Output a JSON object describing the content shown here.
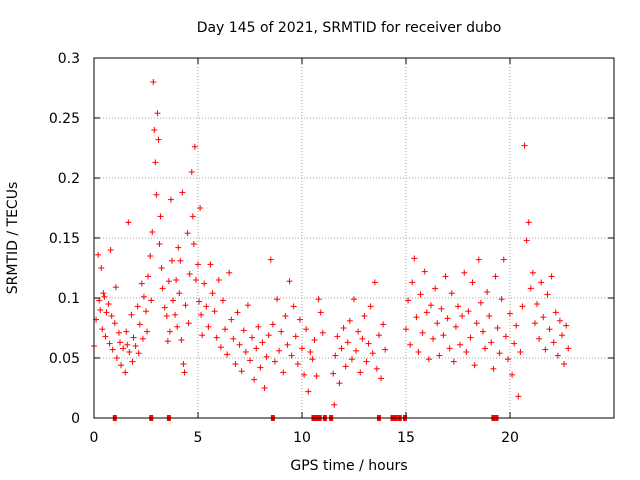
{
  "chart_data": {
    "type": "scatter",
    "title": "Day 145 of 2021, SRMTID for receiver dubo",
    "xlabel": "GPS time / hours",
    "ylabel": "SRMTID / TECUs",
    "xlim": [
      0,
      25
    ],
    "ylim": [
      0,
      0.3
    ],
    "xticks": [
      0,
      5,
      10,
      15,
      20
    ],
    "xtick_labels": [
      "0",
      "5",
      "10",
      "15",
      "20"
    ],
    "yticks": [
      0,
      0.05,
      0.1,
      0.15,
      0.2,
      0.25,
      0.3
    ],
    "ytick_labels": [
      "0",
      "0.05",
      "0.1",
      "0.15",
      "0.2",
      "0.25",
      "0.3"
    ],
    "grid": true,
    "marker": "+",
    "series_color": "#ff0000",
    "series": [
      {
        "name": "SRMTID",
        "points": [
          [
            0.0,
            0.06
          ],
          [
            0.1,
            0.082
          ],
          [
            0.2,
            0.136
          ],
          [
            0.25,
            0.098
          ],
          [
            0.3,
            0.09
          ],
          [
            0.35,
            0.125
          ],
          [
            0.4,
            0.074
          ],
          [
            0.45,
            0.104
          ],
          [
            0.5,
            0.101
          ],
          [
            0.55,
            0.068
          ],
          [
            0.6,
            0.088
          ],
          [
            0.7,
            0.095
          ],
          [
            0.75,
            0.062
          ],
          [
            0.8,
            0.14
          ],
          [
            0.85,
            0.085
          ],
          [
            0.9,
            0.057
          ],
          [
            1.0,
            0.079
          ],
          [
            1.05,
            0.109
          ],
          [
            1.1,
            0.05
          ],
          [
            1.2,
            0.071
          ],
          [
            1.25,
            0.063
          ],
          [
            1.3,
            0.044
          ],
          [
            1.4,
            0.058
          ],
          [
            1.5,
            0.038
          ],
          [
            1.55,
            0.072
          ],
          [
            1.6,
            0.061
          ],
          [
            1.65,
            0.163
          ],
          [
            1.7,
            0.055
          ],
          [
            1.8,
            0.086
          ],
          [
            1.85,
            0.047
          ],
          [
            1.9,
            0.067
          ],
          [
            2.0,
            0.06
          ],
          [
            2.1,
            0.093
          ],
          [
            2.15,
            0.054
          ],
          [
            2.2,
            0.078
          ],
          [
            2.3,
            0.112
          ],
          [
            2.35,
            0.066
          ],
          [
            2.4,
            0.101
          ],
          [
            2.5,
            0.089
          ],
          [
            2.55,
            0.072
          ],
          [
            2.6,
            0.118
          ],
          [
            2.7,
            0.135
          ],
          [
            2.75,
            0.098
          ],
          [
            2.8,
            0.155
          ],
          [
            2.85,
            0.28
          ],
          [
            2.9,
            0.24
          ],
          [
            2.95,
            0.213
          ],
          [
            3.0,
            0.186
          ],
          [
            3.05,
            0.254
          ],
          [
            3.1,
            0.232
          ],
          [
            3.15,
            0.145
          ],
          [
            3.2,
            0.168
          ],
          [
            3.25,
            0.125
          ],
          [
            3.3,
            0.108
          ],
          [
            3.4,
            0.092
          ],
          [
            3.5,
            0.085
          ],
          [
            3.55,
            0.064
          ],
          [
            3.6,
            0.114
          ],
          [
            3.65,
            0.072
          ],
          [
            3.7,
            0.182
          ],
          [
            3.75,
            0.131
          ],
          [
            3.8,
            0.098
          ],
          [
            3.9,
            0.086
          ],
          [
            3.95,
            0.115
          ],
          [
            4.0,
            0.076
          ],
          [
            4.05,
            0.142
          ],
          [
            4.1,
            0.104
          ],
          [
            4.15,
            0.131
          ],
          [
            4.2,
            0.065
          ],
          [
            4.25,
            0.188
          ],
          [
            4.3,
            0.045
          ],
          [
            4.35,
            0.038
          ],
          [
            4.4,
            0.094
          ],
          [
            4.5,
            0.154
          ],
          [
            4.55,
            0.079
          ],
          [
            4.6,
            0.12
          ],
          [
            4.7,
            0.205
          ],
          [
            4.75,
            0.168
          ],
          [
            4.8,
            0.145
          ],
          [
            4.85,
            0.226
          ],
          [
            4.9,
            0.115
          ],
          [
            5.0,
            0.128
          ],
          [
            5.05,
            0.097
          ],
          [
            5.1,
            0.175
          ],
          [
            5.15,
            0.086
          ],
          [
            5.2,
            0.069
          ],
          [
            5.3,
            0.112
          ],
          [
            5.4,
            0.093
          ],
          [
            5.5,
            0.076
          ],
          [
            5.6,
            0.128
          ],
          [
            5.7,
            0.104
          ],
          [
            5.8,
            0.089
          ],
          [
            5.9,
            0.067
          ],
          [
            6.0,
            0.115
          ],
          [
            6.1,
            0.059
          ],
          [
            6.2,
            0.098
          ],
          [
            6.3,
            0.074
          ],
          [
            6.4,
            0.053
          ],
          [
            6.5,
            0.121
          ],
          [
            6.6,
            0.082
          ],
          [
            6.7,
            0.066
          ],
          [
            6.8,
            0.045
          ],
          [
            6.9,
            0.088
          ],
          [
            7.0,
            0.061
          ],
          [
            7.1,
            0.039
          ],
          [
            7.2,
            0.073
          ],
          [
            7.3,
            0.055
          ],
          [
            7.4,
            0.094
          ],
          [
            7.5,
            0.048
          ],
          [
            7.6,
            0.067
          ],
          [
            7.7,
            0.032
          ],
          [
            7.8,
            0.058
          ],
          [
            7.9,
            0.076
          ],
          [
            8.0,
            0.042
          ],
          [
            8.1,
            0.063
          ],
          [
            8.2,
            0.025
          ],
          [
            8.3,
            0.051
          ],
          [
            8.4,
            0.069
          ],
          [
            8.5,
            0.132
          ],
          [
            8.6,
            0.078
          ],
          [
            8.7,
            0.047
          ],
          [
            8.8,
            0.099
          ],
          [
            8.9,
            0.056
          ],
          [
            9.0,
            0.072
          ],
          [
            9.1,
            0.038
          ],
          [
            9.2,
            0.085
          ],
          [
            9.3,
            0.061
          ],
          [
            9.4,
            0.114
          ],
          [
            9.5,
            0.052
          ],
          [
            9.6,
            0.093
          ],
          [
            9.7,
            0.068
          ],
          [
            9.8,
            0.045
          ],
          [
            9.9,
            0.082
          ],
          [
            10.0,
            0.058
          ],
          [
            10.1,
            0.036
          ],
          [
            10.2,
            0.074
          ],
          [
            10.3,
            0.022
          ],
          [
            10.4,
            0.055
          ],
          [
            10.5,
            0.049
          ],
          [
            10.6,
            0.065
          ],
          [
            10.7,
            0.035
          ],
          [
            10.8,
            0.099
          ],
          [
            10.9,
            0.088
          ],
          [
            11.0,
            0.071
          ],
          [
            11.5,
            0.037
          ],
          [
            11.55,
            0.011
          ],
          [
            11.6,
            0.052
          ],
          [
            11.7,
            0.068
          ],
          [
            11.8,
            0.029
          ],
          [
            11.9,
            0.058
          ],
          [
            12.0,
            0.075
          ],
          [
            12.1,
            0.043
          ],
          [
            12.2,
            0.063
          ],
          [
            12.3,
            0.081
          ],
          [
            12.4,
            0.049
          ],
          [
            12.5,
            0.099
          ],
          [
            12.6,
            0.056
          ],
          [
            12.7,
            0.072
          ],
          [
            12.8,
            0.038
          ],
          [
            12.9,
            0.066
          ],
          [
            13.0,
            0.085
          ],
          [
            13.1,
            0.047
          ],
          [
            13.2,
            0.062
          ],
          [
            13.3,
            0.093
          ],
          [
            13.4,
            0.054
          ],
          [
            13.5,
            0.113
          ],
          [
            13.6,
            0.041
          ],
          [
            13.7,
            0.069
          ],
          [
            13.8,
            0.033
          ],
          [
            13.9,
            0.078
          ],
          [
            14.0,
            0.057
          ],
          [
            15.0,
            0.074
          ],
          [
            15.1,
            0.098
          ],
          [
            15.2,
            0.061
          ],
          [
            15.3,
            0.113
          ],
          [
            15.4,
            0.133
          ],
          [
            15.5,
            0.084
          ],
          [
            15.6,
            0.055
          ],
          [
            15.7,
            0.103
          ],
          [
            15.8,
            0.071
          ],
          [
            15.9,
            0.122
          ],
          [
            16.0,
            0.088
          ],
          [
            16.1,
            0.049
          ],
          [
            16.2,
            0.094
          ],
          [
            16.3,
            0.066
          ],
          [
            16.4,
            0.108
          ],
          [
            16.5,
            0.079
          ],
          [
            16.6,
            0.052
          ],
          [
            16.7,
            0.091
          ],
          [
            16.8,
            0.069
          ],
          [
            16.9,
            0.118
          ],
          [
            17.0,
            0.083
          ],
          [
            17.1,
            0.058
          ],
          [
            17.2,
            0.104
          ],
          [
            17.3,
            0.047
          ],
          [
            17.4,
            0.076
          ],
          [
            17.5,
            0.093
          ],
          [
            17.6,
            0.061
          ],
          [
            17.7,
            0.085
          ],
          [
            17.8,
            0.121
          ],
          [
            17.9,
            0.055
          ],
          [
            18.0,
            0.089
          ],
          [
            18.1,
            0.067
          ],
          [
            18.2,
            0.113
          ],
          [
            18.3,
            0.044
          ],
          [
            18.4,
            0.079
          ],
          [
            18.5,
            0.132
          ],
          [
            18.6,
            0.096
          ],
          [
            18.7,
            0.072
          ],
          [
            18.8,
            0.058
          ],
          [
            18.9,
            0.105
          ],
          [
            19.0,
            0.085
          ],
          [
            19.1,
            0.063
          ],
          [
            19.2,
            0.041
          ],
          [
            19.3,
            0.118
          ],
          [
            19.4,
            0.075
          ],
          [
            19.5,
            0.054
          ],
          [
            19.6,
            0.099
          ],
          [
            19.7,
            0.132
          ],
          [
            19.8,
            0.068
          ],
          [
            19.9,
            0.049
          ],
          [
            20.0,
            0.087
          ],
          [
            20.1,
            0.036
          ],
          [
            20.2,
            0.062
          ],
          [
            20.3,
            0.077
          ],
          [
            20.4,
            0.018
          ],
          [
            20.5,
            0.055
          ],
          [
            20.6,
            0.093
          ],
          [
            20.7,
            0.227
          ],
          [
            20.8,
            0.148
          ],
          [
            20.9,
            0.163
          ],
          [
            21.0,
            0.108
          ],
          [
            21.1,
            0.121
          ],
          [
            21.2,
            0.079
          ],
          [
            21.3,
            0.095
          ],
          [
            21.4,
            0.066
          ],
          [
            21.5,
            0.113
          ],
          [
            21.6,
            0.084
          ],
          [
            21.7,
            0.057
          ],
          [
            21.8,
            0.103
          ],
          [
            21.9,
            0.074
          ],
          [
            22.0,
            0.118
          ],
          [
            22.1,
            0.063
          ],
          [
            22.2,
            0.088
          ],
          [
            22.3,
            0.052
          ],
          [
            22.4,
            0.081
          ],
          [
            22.5,
            0.069
          ],
          [
            22.6,
            0.045
          ],
          [
            22.7,
            0.077
          ],
          [
            22.8,
            0.058
          ]
        ]
      }
    ],
    "zero_markers_x": [
      1.0,
      2.75,
      3.6,
      8.6,
      10.55,
      10.7,
      10.85,
      11.1,
      11.4,
      13.7,
      14.35,
      14.5,
      14.7,
      14.95,
      19.2,
      19.35
    ]
  }
}
